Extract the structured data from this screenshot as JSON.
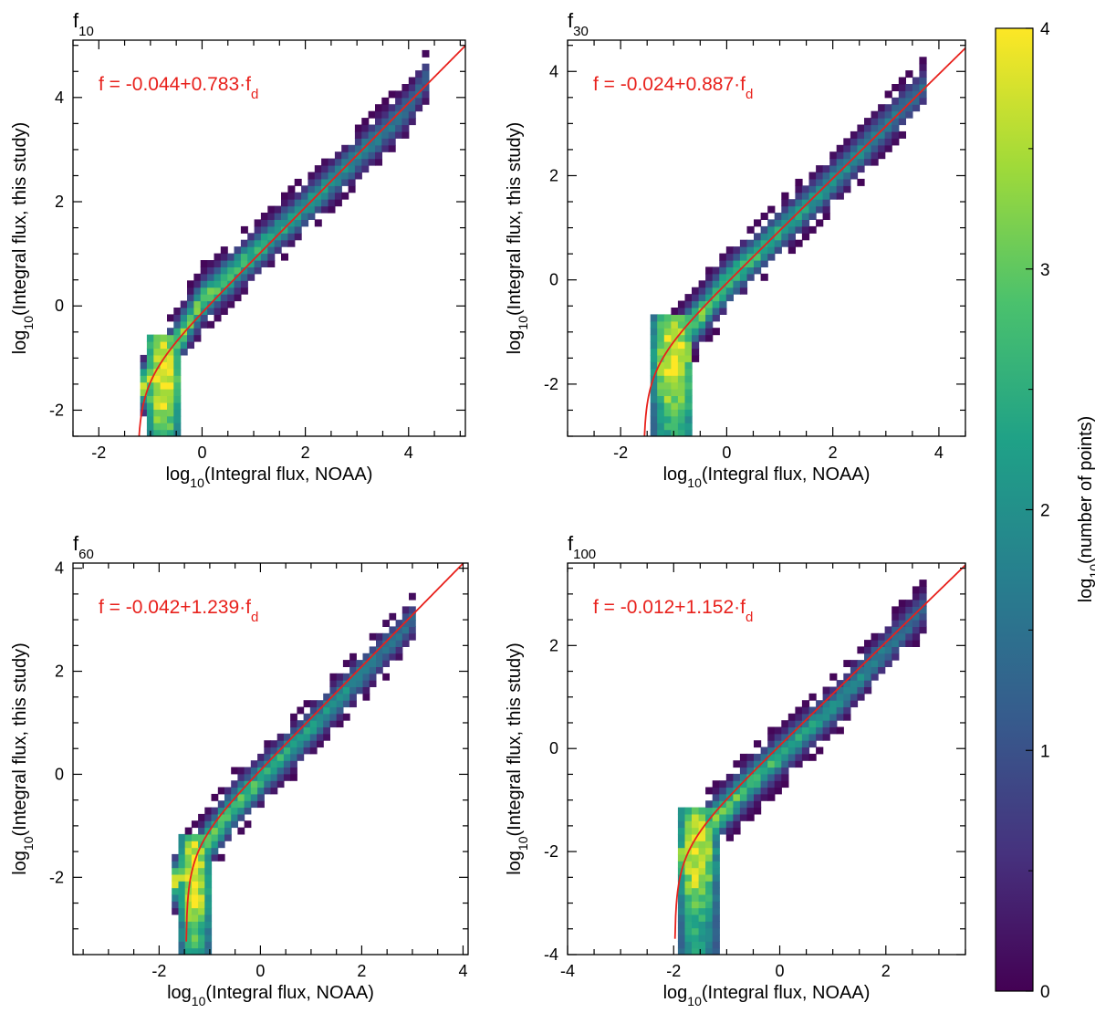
{
  "figure": {
    "colorbar": {
      "label_pre": "log",
      "label_sub": "10",
      "label_post": "(number of points)",
      "range": [
        0,
        4
      ],
      "ticks": [
        "0",
        "1",
        "2",
        "3",
        "4"
      ],
      "colormap": [
        "#440154",
        "#46327e",
        "#365c8d",
        "#277f8e",
        "#1fa187",
        "#4ac16d",
        "#a0da39",
        "#fde725"
      ]
    },
    "fit_color": "#e8211c"
  },
  "chart_data": [
    {
      "type": "heatmap",
      "panel_label_main": "f",
      "panel_label_sub": "10",
      "xlabel": {
        "pre": "log",
        "sub": "10",
        "post": "(Integral flux, NOAA)"
      },
      "ylabel": {
        "pre": "log",
        "sub": "10",
        "post": "(Integral flux, this study)"
      },
      "xlim": [
        -2.5,
        5.1
      ],
      "ylim": [
        -2.5,
        5.1
      ],
      "xticks": [
        -2,
        0,
        2,
        4
      ],
      "xtick_labels": [
        "-2",
        "0",
        "2",
        "4"
      ],
      "yticks": [
        -2,
        0,
        2,
        4
      ],
      "ytick_labels": [
        "-2",
        "0",
        "2",
        "4"
      ],
      "fit": {
        "text_pre": "f = -0.044+0.783·f",
        "text_sub": "d",
        "a": -0.044,
        "b": 0.783
      },
      "density": {
        "ridge_points": [
          [
            -0.8,
            -1.2
          ],
          [
            0.0,
            0.1
          ],
          [
            2.0,
            1.9
          ],
          [
            4.0,
            3.8
          ],
          [
            4.3,
            4.3
          ]
        ],
        "foot_x": [
          -1.1,
          -0.4
        ],
        "foot_y_min": -2.5,
        "peak_log10_count": 4.0
      }
    },
    {
      "type": "heatmap",
      "panel_label_main": "f",
      "panel_label_sub": "30",
      "xlabel": {
        "pre": "log",
        "sub": "10",
        "post": "(Integral flux, NOAA)"
      },
      "ylabel": {
        "pre": "log",
        "sub": "10",
        "post": "(Integral flux, this study)"
      },
      "xlim": [
        -3.0,
        4.5
      ],
      "ylim": [
        -3.0,
        4.6
      ],
      "xticks": [
        -2,
        0,
        2,
        4
      ],
      "xtick_labels": [
        "-2",
        "0",
        "2",
        "4"
      ],
      "yticks": [
        -2,
        0,
        2,
        4
      ],
      "ytick_labels": [
        "-2",
        "0",
        "2",
        "4"
      ],
      "fit": {
        "text_pre": "f = -0.024+0.887·f",
        "text_sub": "d",
        "a": -0.024,
        "b": 0.887
      },
      "density": {
        "ridge_points": [
          [
            -1.0,
            -1.3
          ],
          [
            0.0,
            -0.05
          ],
          [
            2.0,
            1.9
          ],
          [
            3.7,
            3.7
          ]
        ],
        "foot_x": [
          -1.4,
          -0.6
        ],
        "foot_y_min": -3.0,
        "peak_log10_count": 4.0
      }
    },
    {
      "type": "heatmap",
      "panel_label_main": "f",
      "panel_label_sub": "60",
      "xlabel": {
        "pre": "log",
        "sub": "10",
        "post": "(Integral flux, NOAA)"
      },
      "ylabel": {
        "pre": "log",
        "sub": "10",
        "post": "(Integral flux, this study)"
      },
      "xlim": [
        -3.7,
        4.1
      ],
      "ylim": [
        -3.5,
        4.1
      ],
      "xticks": [
        -2,
        0,
        2,
        4
      ],
      "xtick_labels": [
        "-2",
        "0",
        "2",
        "4"
      ],
      "yticks": [
        -2,
        0,
        2,
        4
      ],
      "ytick_labels": [
        "-2",
        "0",
        "2",
        "4"
      ],
      "fit": {
        "text_pre": "f = -0.042+1.239·f",
        "text_sub": "d",
        "a": -0.042,
        "b": 1.239
      },
      "density": {
        "ridge_points": [
          [
            -1.4,
            -1.8
          ],
          [
            -0.5,
            -0.6
          ],
          [
            1.0,
            0.9
          ],
          [
            3.0,
            3.0
          ]
        ],
        "foot_x": [
          -1.6,
          -1.0
        ],
        "foot_y_min": -3.5,
        "peak_log10_count": 4.0
      }
    },
    {
      "type": "heatmap",
      "panel_label_main": "f",
      "panel_label_sub": "100",
      "xlabel": {
        "pre": "log",
        "sub": "10",
        "post": "(Integral flux, NOAA)"
      },
      "ylabel": {
        "pre": "log",
        "sub": "10",
        "post": "(Integral flux, this study)"
      },
      "xlim": [
        -4.0,
        3.5
      ],
      "ylim": [
        -4.0,
        3.6
      ],
      "xticks": [
        -4,
        -2,
        0,
        2
      ],
      "xtick_labels": [
        "-4",
        "-2",
        "0",
        "2"
      ],
      "yticks": [
        -4,
        -2,
        0,
        2
      ],
      "ytick_labels": [
        "-4",
        "-2",
        "0",
        "2"
      ],
      "fit": {
        "text_pre": "f = -0.012+1.152·f",
        "text_sub": "d",
        "a": -0.012,
        "b": 1.152
      },
      "density": {
        "ridge_points": [
          [
            -1.6,
            -1.8
          ],
          [
            -0.5,
            -0.6
          ],
          [
            1.0,
            0.8
          ],
          [
            2.6,
            2.6
          ]
        ],
        "foot_x": [
          -1.9,
          -1.2
        ],
        "foot_y_min": -4.0,
        "peak_log10_count": 4.0
      }
    }
  ]
}
